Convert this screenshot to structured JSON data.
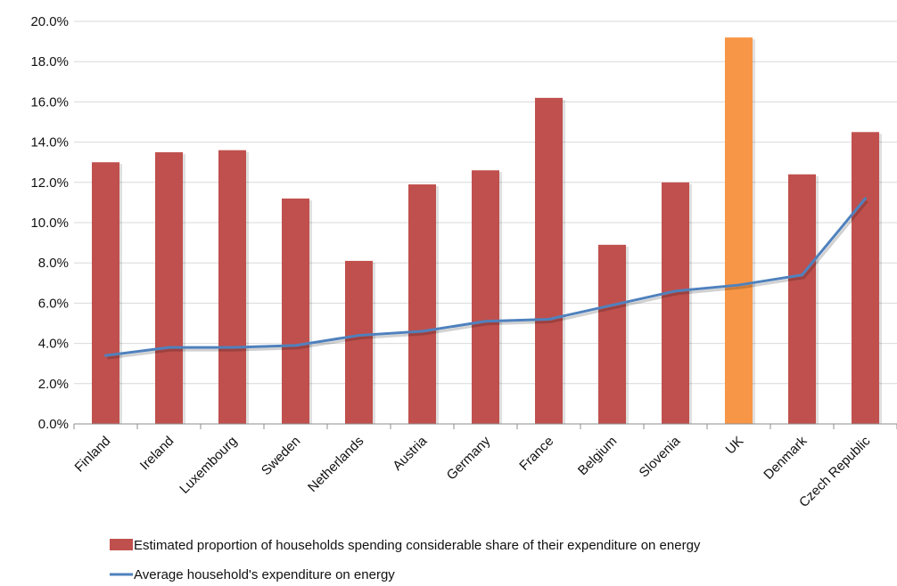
{
  "chart_data": {
    "type": "bar",
    "title": "",
    "xlabel": "",
    "ylabel": "",
    "categories": [
      "Finland",
      "Ireland",
      "Luxembourg",
      "Sweden",
      "Netherlands",
      "Austria",
      "Germany",
      "France",
      "Belgium",
      "Slovenia",
      "UK",
      "Denmark",
      "Czech Republic"
    ],
    "ylim": [
      0,
      20
    ],
    "y_ticks": [
      "0.0%",
      "2.0%",
      "4.0%",
      "6.0%",
      "8.0%",
      "10.0%",
      "12.0%",
      "14.0%",
      "16.0%",
      "18.0%",
      "20.0%"
    ],
    "grid": "horizontal",
    "legend_position": "bottom",
    "series": [
      {
        "name": "Estimated proportion of households spending considerable share of their expenditure on energy",
        "type": "bar",
        "values": [
          13.0,
          13.5,
          13.6,
          11.2,
          8.1,
          11.9,
          12.6,
          16.2,
          8.9,
          12.0,
          19.2,
          12.4,
          14.5
        ],
        "color": "#c0504d",
        "highlight": {
          "category": "UK",
          "color": "#f79646"
        }
      },
      {
        "name": "Average household's expenditure on energy",
        "type": "line",
        "values": [
          3.4,
          3.8,
          3.8,
          3.9,
          4.4,
          4.6,
          5.1,
          5.2,
          5.9,
          6.6,
          6.9,
          7.4,
          11.2
        ],
        "color": "#4f81bd"
      }
    ],
    "colors": {
      "grid": "#d9d9d9",
      "axis": "#8c8c8c"
    }
  }
}
